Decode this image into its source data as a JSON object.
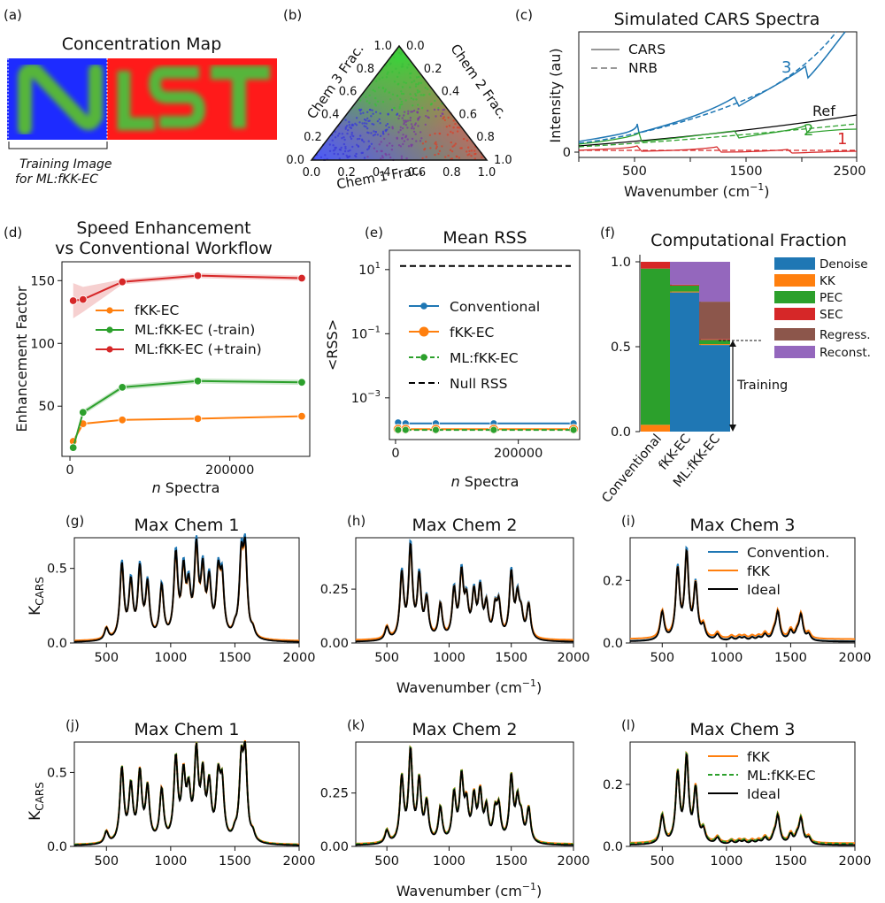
{
  "panels": {
    "a": {
      "label": "(a)",
      "title": "Concentration Map",
      "caption_line1": "Training Image",
      "caption_line2": "for ML:fKK-EC",
      "map_left_text": "N",
      "map_right_text": "IST"
    },
    "b": {
      "label": "(b)",
      "axis1": "Chem 1 Frac.",
      "axis2": "Chem 2 Frac.",
      "axis3": "Chem 3 Frac.",
      "ticks_bottom": [
        "0.0",
        "0.2",
        "0.4",
        "0.6",
        "0.8",
        "1.0"
      ],
      "ticks_right": [
        "1.0",
        "0.8",
        "0.6",
        "0.4",
        "0.2",
        "0.0"
      ],
      "ticks_left": [
        "0.0",
        "0.2",
        "0.4",
        "0.6",
        "0.8",
        "1.0"
      ]
    },
    "c": {
      "label": "(c)",
      "title": "Simulated CARS Spectra",
      "xlabel": "Wavenumber (cm",
      "xlabel_sup": "−1",
      "xlabel_end": ")",
      "ylabel": "Intensity (au)",
      "xticks": [
        "500",
        "1500",
        "2500"
      ],
      "yticks": [
        "0"
      ],
      "legend": [
        "CARS",
        "NRB"
      ],
      "annotations": [
        "3",
        "Ref",
        "2",
        "1"
      ]
    },
    "d": {
      "label": "(d)",
      "title_line1": "Speed Enhancement",
      "title_line2": "vs Conventional Workflow",
      "ylabel": "Enhancement Factor",
      "xlabel_italic": "n",
      "xlabel_rest": " Spectra",
      "xticks": [
        "0",
        "200000"
      ],
      "yticks": [
        "50",
        "100",
        "150"
      ]
    },
    "e": {
      "label": "(e)",
      "title": "Mean RSS",
      "ylabel": "<RSS>",
      "xlabel_italic": "n",
      "xlabel_rest": " Spectra",
      "xticks": [
        "0",
        "200000"
      ],
      "ytick_base": "10",
      "ytick_exps": [
        "1",
        "−1",
        "−3"
      ]
    },
    "f": {
      "label": "(f)",
      "title": "Computational Fraction",
      "yticks": [
        "0.0",
        "0.5",
        "1.0"
      ],
      "categories": [
        "Conventional",
        "fKK-EC",
        "ML:fKK-EC"
      ],
      "training_label": "Training"
    },
    "g": {
      "label": "(g)",
      "title": "Max Chem 1"
    },
    "h": {
      "label": "(h)",
      "title": "Max Chem 2"
    },
    "i": {
      "label": "(i)",
      "title": "Max Chem 3"
    },
    "j": {
      "label": "(j)",
      "title": "Max Chem 1"
    },
    "k": {
      "label": "(k)",
      "title": "Max Chem 2"
    },
    "l": {
      "label": "(l)",
      "title": "Max Chem 3"
    },
    "spectra": {
      "ylabel_main": "K",
      "ylabel_sub": "CARS",
      "xlabel": "Wavenumber (cm",
      "xlabel_sup": "−1",
      "xlabel_end": ")",
      "xticks": [
        "500",
        "1000",
        "1500",
        "2000"
      ],
      "legend_top": [
        "Convention.",
        "fKK",
        "Ideal"
      ],
      "legend_bottom": [
        "fKK",
        "ML:fKK-EC",
        "Ideal"
      ]
    }
  },
  "colors": {
    "blue": "#1f77b4",
    "orange": "#ff7f0e",
    "green": "#2ca02c",
    "red": "#d62728",
    "brown": "#8c564b",
    "purple": "#9467bd",
    "black": "#000000",
    "gray": "#888888"
  },
  "chart_data": [
    {
      "type": "line",
      "panel": "c",
      "title": "Simulated CARS Spectra",
      "xlabel": "Wavenumber (cm−1)",
      "ylabel": "Intensity (au)",
      "xlim": [
        0,
        2500
      ],
      "series": [
        {
          "name": "CARS",
          "style": "solid"
        },
        {
          "name": "NRB",
          "style": "dashed"
        }
      ],
      "annotations": [
        "3",
        "Ref",
        "2",
        "1"
      ]
    },
    {
      "type": "line",
      "panel": "d",
      "title": "Speed Enhancement vs Conventional Workflow",
      "xlabel": "n Spectra",
      "ylabel": "Enhancement Factor",
      "xlim": [
        -10000,
        300000
      ],
      "ylim": [
        10,
        165
      ],
      "x": [
        4096,
        16384,
        65536,
        160000,
        290000
      ],
      "series": [
        {
          "name": "fKK-EC",
          "color": "#ff7f0e",
          "values": [
            22,
            36,
            39,
            40,
            42
          ]
        },
        {
          "name": "ML:fKK-EC (-train)",
          "color": "#2ca02c",
          "values": [
            17,
            45,
            65,
            70,
            69
          ]
        },
        {
          "name": "ML:fKK-EC (+train)",
          "color": "#d62728",
          "values": [
            134,
            135,
            149,
            154,
            152
          ]
        }
      ]
    },
    {
      "type": "line",
      "panel": "e",
      "title": "Mean RSS",
      "yscale": "log",
      "xlabel": "n Spectra",
      "ylabel": "<RSS>",
      "xlim": [
        -10000,
        300000
      ],
      "ylim": [
        5e-05,
        40
      ],
      "x": [
        4096,
        16384,
        65536,
        160000,
        290000
      ],
      "series": [
        {
          "name": "Conventional",
          "color": "#1f77b4",
          "values": [
            0.00017,
            0.00016,
            0.00016,
            0.00016,
            0.00016
          ]
        },
        {
          "name": "fKK-EC",
          "color": "#ff7f0e",
          "values": [
            0.000105,
            0.000105,
            0.000105,
            0.000105,
            0.000105
          ]
        },
        {
          "name": "ML:fKK-EC",
          "color": "#2ca02c",
          "values": [
            0.0001,
            0.0001,
            0.0001,
            0.0001,
            0.0001
          ]
        },
        {
          "name": "Null RSS",
          "color": "#000000",
          "values": [
            13,
            13,
            13,
            13,
            13
          ]
        }
      ]
    },
    {
      "type": "bar",
      "panel": "f",
      "title": "Computational Fraction",
      "stacked": true,
      "ylim": [
        0,
        1
      ],
      "categories": [
        "Conventional",
        "fKK-EC",
        "ML:fKK-EC"
      ],
      "series": [
        {
          "name": "Denoise",
          "color": "#1f77b4",
          "values": [
            0.0,
            0.82,
            0.51
          ]
        },
        {
          "name": "KK",
          "color": "#ff7f0e",
          "values": [
            0.04,
            0.005,
            0.005
          ]
        },
        {
          "name": "PEC",
          "color": "#2ca02c",
          "values": [
            0.92,
            0.035,
            0.025
          ]
        },
        {
          "name": "SEC",
          "color": "#d62728",
          "values": [
            0.04,
            0.005,
            0.005
          ]
        },
        {
          "name": "Regress.",
          "color": "#8c564b",
          "values": [
            0.0,
            0.0,
            0.22
          ]
        },
        {
          "name": "Reconst.",
          "color": "#9467bd",
          "values": [
            0.0,
            0.135,
            0.235
          ]
        }
      ]
    },
    {
      "type": "line",
      "panel": "g-l",
      "ylabel": "KCARS",
      "xlabel": "Wavenumber (cm−1)",
      "xlim": [
        250,
        2000
      ],
      "peaks_x": [
        500,
        620,
        690,
        760,
        820,
        930,
        1040,
        1100,
        1140,
        1200,
        1250,
        1300,
        1370,
        1400,
        1500,
        1550,
        1580,
        1640
      ],
      "panels": [
        {
          "panel": "g",
          "title": "Max Chem 1",
          "ylim": [
            0,
            0.65
          ],
          "yticks": [
            "0.0",
            "0.5"
          ],
          "legend": []
        },
        {
          "panel": "h",
          "title": "Max Chem 2",
          "ylim": [
            0,
            0.45
          ],
          "yticks": [
            "0.00",
            "0.25"
          ],
          "legend": []
        },
        {
          "panel": "i",
          "title": "Max Chem 3",
          "ylim": [
            0,
            0.31
          ],
          "yticks": [
            "0.0",
            "0.2"
          ],
          "legend": [
            "Convention.",
            "fKK",
            "Ideal"
          ]
        },
        {
          "panel": "j",
          "title": "Max Chem 1",
          "ylim": [
            0,
            0.65
          ],
          "yticks": [
            "0.0",
            "0.5"
          ],
          "legend": []
        },
        {
          "panel": "k",
          "title": "Max Chem 2",
          "ylim": [
            0,
            0.45
          ],
          "yticks": [
            "0.00",
            "0.25"
          ],
          "legend": []
        },
        {
          "panel": "l",
          "title": "Max Chem 3",
          "ylim": [
            0,
            0.31
          ],
          "yticks": [
            "0.0",
            "0.2"
          ],
          "legend": [
            "fKK",
            "ML:fKK-EC",
            "Ideal"
          ]
        }
      ]
    }
  ]
}
